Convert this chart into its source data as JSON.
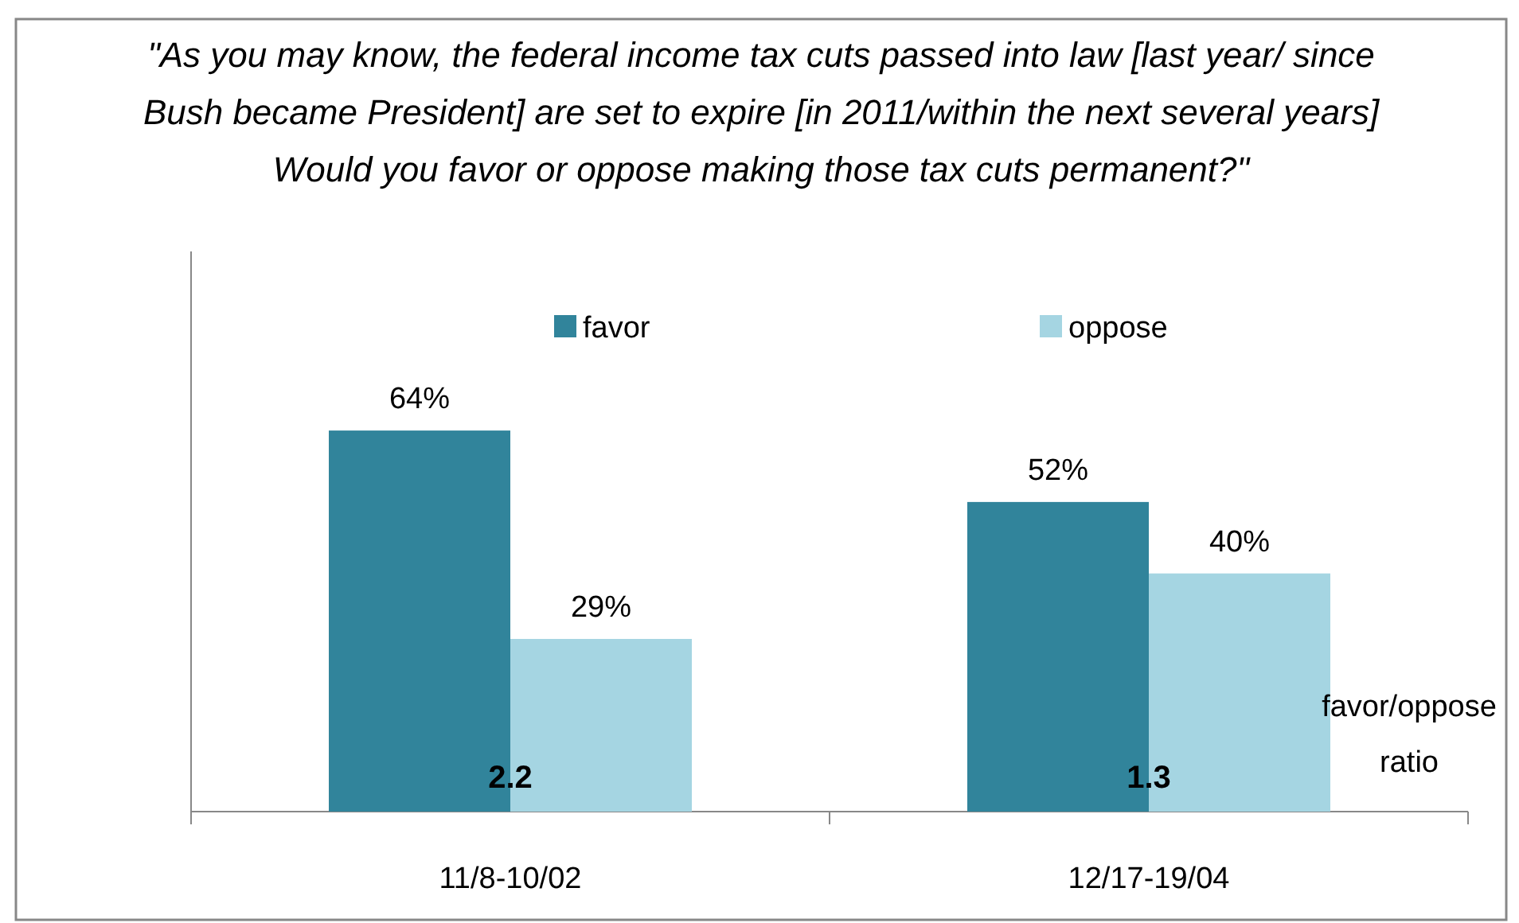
{
  "chart_data": {
    "type": "bar",
    "title": "\"As you may know, the federal income tax cuts passed into law [last year/ since Bush became President] are set to expire [in 2011/within the next several years]  Would you favor or oppose making those tax cuts permanent?\"",
    "categories": [
      "11/8-10/02",
      "12/17-19/04"
    ],
    "series": [
      {
        "name": "favor",
        "color": "#31849b",
        "values": [
          64,
          52
        ],
        "value_labels": [
          "64%",
          "52%"
        ]
      },
      {
        "name": "oppose",
        "color": "#a5d5e2",
        "values": [
          29,
          40
        ],
        "value_labels": [
          "29%",
          "40%"
        ]
      }
    ],
    "legend": "top",
    "grid": false,
    "annotations": [
      {
        "text": "2.2",
        "x": "11/8-10/02"
      },
      {
        "text": "1.3",
        "x": "12/17-19/04"
      },
      "favor/oppose ratio"
    ]
  }
}
